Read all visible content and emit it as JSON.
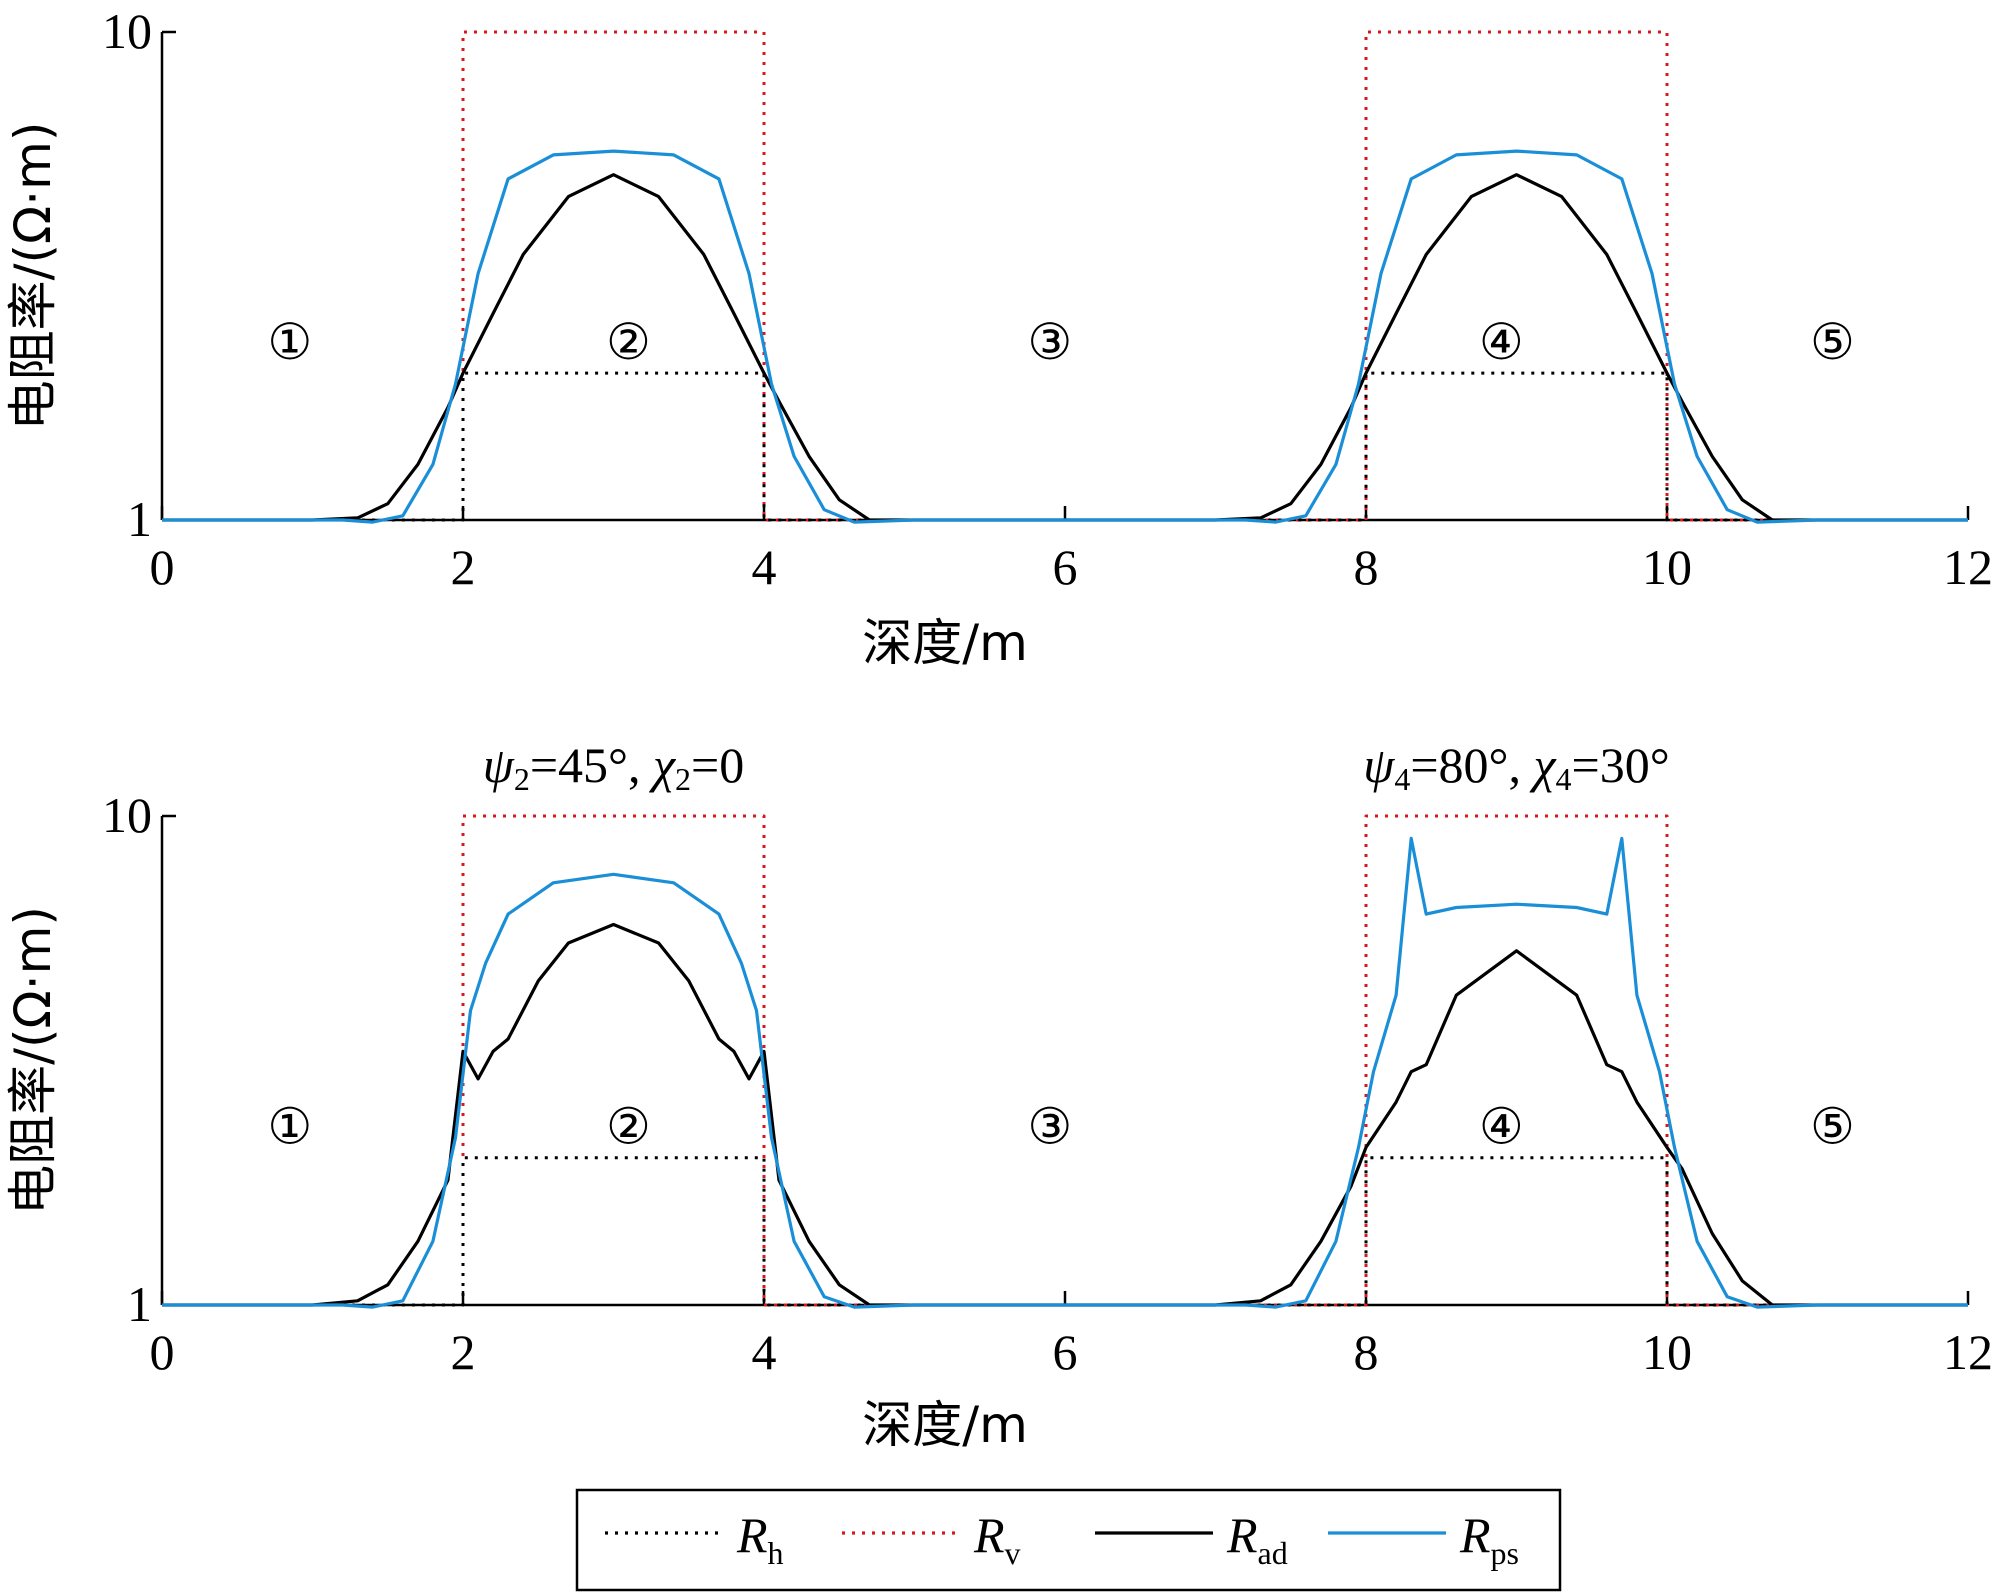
{
  "chart_data": [
    {
      "type": "line",
      "panel": "top",
      "xlabel": "深度/m",
      "ylabel": "电阻率/(Ω·m)",
      "xlim": [
        0,
        12
      ],
      "ylim": [
        1,
        10
      ],
      "yscale": "log",
      "xticks": [
        "0",
        "2",
        "4",
        "6",
        "8",
        "10",
        "12"
      ],
      "yticks": [
        "1",
        "10"
      ],
      "zone_labels": [
        {
          "text": "①",
          "x": 0.85
        },
        {
          "text": "②",
          "x": 3.1
        },
        {
          "text": "③",
          "x": 5.9
        },
        {
          "text": "④",
          "x": 8.9
        },
        {
          "text": "⑤",
          "x": 11.1
        }
      ],
      "annotations": [],
      "series": [
        {
          "name": "Rh",
          "color": "#000000",
          "style": "dotted",
          "x": [
            0,
            2,
            2,
            4,
            4,
            8,
            8,
            10,
            10,
            12
          ],
          "y": [
            1,
            1,
            2,
            2,
            1,
            1,
            2,
            2,
            1,
            1
          ]
        },
        {
          "name": "Rv",
          "color": "#d7191c",
          "style": "dotted",
          "x": [
            0,
            2,
            2,
            4,
            4,
            8,
            8,
            10,
            10,
            12
          ],
          "y": [
            1,
            1,
            10,
            10,
            1,
            1,
            10,
            10,
            1,
            1
          ]
        },
        {
          "name": "Rad",
          "color": "#000000",
          "style": "solid",
          "x": [
            0,
            1.0,
            1.3,
            1.5,
            1.7,
            1.9,
            2.0,
            2.2,
            2.4,
            2.7,
            3.0,
            3.3,
            3.6,
            3.8,
            4.0,
            4.1,
            4.3,
            4.5,
            4.7,
            5.0,
            7.0,
            7.3,
            7.5,
            7.7,
            7.9,
            8.0,
            8.2,
            8.4,
            8.7,
            9.0,
            9.3,
            9.6,
            9.8,
            10.0,
            10.1,
            10.3,
            10.5,
            10.7,
            11.0,
            12
          ],
          "y": [
            1,
            1,
            1.01,
            1.08,
            1.3,
            1.7,
            2.0,
            2.65,
            3.5,
            4.6,
            5.1,
            4.6,
            3.5,
            2.65,
            2.0,
            1.75,
            1.35,
            1.1,
            1.0,
            1.0,
            1.0,
            1.01,
            1.08,
            1.3,
            1.7,
            2.0,
            2.65,
            3.5,
            4.6,
            5.1,
            4.6,
            3.5,
            2.65,
            2.0,
            1.75,
            1.35,
            1.1,
            1.0,
            1.0,
            1
          ]
        },
        {
          "name": "Rps",
          "color": "#1a8fd8",
          "style": "solid",
          "x": [
            0,
            1.2,
            1.4,
            1.6,
            1.8,
            1.95,
            2.1,
            2.3,
            2.6,
            3.0,
            3.4,
            3.7,
            3.9,
            4.05,
            4.2,
            4.4,
            4.6,
            5.0,
            7.2,
            7.4,
            7.6,
            7.8,
            7.95,
            8.1,
            8.3,
            8.6,
            9.0,
            9.4,
            9.7,
            9.9,
            10.05,
            10.2,
            10.4,
            10.6,
            11.0,
            12
          ],
          "y": [
            1,
            1,
            0.99,
            1.02,
            1.3,
            1.9,
            3.2,
            5.0,
            5.6,
            5.7,
            5.6,
            5.0,
            3.2,
            1.9,
            1.35,
            1.05,
            0.99,
            1.0,
            1.0,
            0.99,
            1.02,
            1.3,
            1.9,
            3.2,
            5.0,
            5.6,
            5.7,
            5.6,
            5.0,
            3.2,
            1.9,
            1.35,
            1.05,
            0.99,
            1.0,
            1
          ]
        }
      ]
    },
    {
      "type": "line",
      "panel": "bottom",
      "xlabel": "深度/m",
      "ylabel": "电阻率/(Ω·m)",
      "xlim": [
        0,
        12
      ],
      "ylim": [
        1,
        10
      ],
      "yscale": "log",
      "xticks": [
        "0",
        "2",
        "4",
        "6",
        "8",
        "10",
        "12"
      ],
      "yticks": [
        "1",
        "10"
      ],
      "zone_labels": [
        {
          "text": "①",
          "x": 0.85
        },
        {
          "text": "②",
          "x": 3.1
        },
        {
          "text": "③",
          "x": 5.9
        },
        {
          "text": "④",
          "x": 8.9
        },
        {
          "text": "⑤",
          "x": 11.1
        }
      ],
      "annotations": [
        {
          "psi": "ψ",
          "psi_sub": "2",
          "psi_val": "=45°, ",
          "chi": "χ",
          "chi_sub": "2",
          "chi_val": "=0",
          "x": 3.0
        },
        {
          "psi": "ψ",
          "psi_sub": "4",
          "psi_val": "=80°, ",
          "chi": "χ",
          "chi_sub": "4",
          "chi_val": "=30°",
          "x": 9.0
        }
      ],
      "series": [
        {
          "name": "Rh",
          "color": "#000000",
          "style": "dotted",
          "x": [
            0,
            2,
            2,
            4,
            4,
            8,
            8,
            10,
            10,
            12
          ],
          "y": [
            1,
            1,
            2,
            2,
            1,
            1,
            2,
            2,
            1,
            1
          ]
        },
        {
          "name": "Rv",
          "color": "#d7191c",
          "style": "dotted",
          "x": [
            0,
            2,
            2,
            4,
            4,
            8,
            8,
            10,
            10,
            12
          ],
          "y": [
            1,
            1,
            10,
            10,
            1,
            1,
            10,
            10,
            1,
            1
          ]
        },
        {
          "name": "Rad",
          "color": "#000000",
          "style": "solid",
          "x": [
            0,
            1.0,
            1.3,
            1.5,
            1.7,
            1.9,
            2.0,
            2.1,
            2.2,
            2.3,
            2.5,
            2.7,
            3.0,
            3.3,
            3.5,
            3.7,
            3.8,
            3.9,
            4.0,
            4.1,
            4.3,
            4.5,
            4.7,
            5.0,
            7.0,
            7.3,
            7.5,
            7.7,
            7.9,
            8.0,
            8.2,
            8.3,
            8.4,
            8.6,
            9.0,
            9.4,
            9.6,
            9.7,
            9.8,
            10.0,
            10.1,
            10.3,
            10.5,
            10.7,
            11.0,
            12
          ],
          "y": [
            1,
            1,
            1.02,
            1.1,
            1.35,
            1.8,
            3.3,
            2.9,
            3.3,
            3.5,
            4.6,
            5.5,
            6.0,
            5.5,
            4.6,
            3.5,
            3.3,
            2.9,
            3.3,
            1.8,
            1.35,
            1.1,
            1.0,
            1.0,
            1.0,
            1.02,
            1.1,
            1.35,
            1.75,
            2.1,
            2.6,
            3.0,
            3.1,
            4.3,
            5.3,
            4.3,
            3.1,
            3.0,
            2.6,
            2.1,
            1.9,
            1.4,
            1.12,
            1.0,
            1.0,
            1
          ]
        },
        {
          "name": "Rps",
          "color": "#1a8fd8",
          "style": "solid",
          "x": [
            0,
            1.2,
            1.4,
            1.6,
            1.8,
            1.95,
            2.05,
            2.15,
            2.3,
            2.6,
            3.0,
            3.4,
            3.7,
            3.85,
            3.95,
            4.05,
            4.2,
            4.4,
            4.6,
            5.0,
            7.2,
            7.4,
            7.6,
            7.8,
            7.95,
            8.05,
            8.2,
            8.3,
            8.4,
            8.6,
            9.0,
            9.4,
            9.6,
            9.7,
            9.8,
            9.95,
            10.05,
            10.2,
            10.4,
            10.6,
            11.0,
            12
          ],
          "y": [
            1,
            1,
            0.99,
            1.02,
            1.35,
            2.2,
            4.0,
            5.0,
            6.3,
            7.3,
            7.6,
            7.3,
            6.3,
            5.0,
            4.0,
            2.2,
            1.35,
            1.04,
            0.99,
            1.0,
            1.0,
            0.99,
            1.02,
            1.35,
            2.1,
            3.0,
            4.3,
            9.0,
            6.3,
            6.5,
            6.6,
            6.5,
            6.3,
            9.0,
            4.3,
            3.0,
            2.1,
            1.35,
            1.04,
            0.99,
            1.0,
            1
          ]
        }
      ]
    }
  ],
  "legend": {
    "items": [
      {
        "key": "Rh",
        "symbol": "R",
        "sub": "h",
        "color": "#000000",
        "style": "dotted"
      },
      {
        "key": "Rv",
        "symbol": "R",
        "sub": "v",
        "color": "#d7191c",
        "style": "dotted"
      },
      {
        "key": "Rad",
        "symbol": "R",
        "sub": "ad",
        "color": "#000000",
        "style": "solid"
      },
      {
        "key": "Rps",
        "symbol": "R",
        "sub": "ps",
        "color": "#1a8fd8",
        "style": "solid"
      }
    ]
  }
}
